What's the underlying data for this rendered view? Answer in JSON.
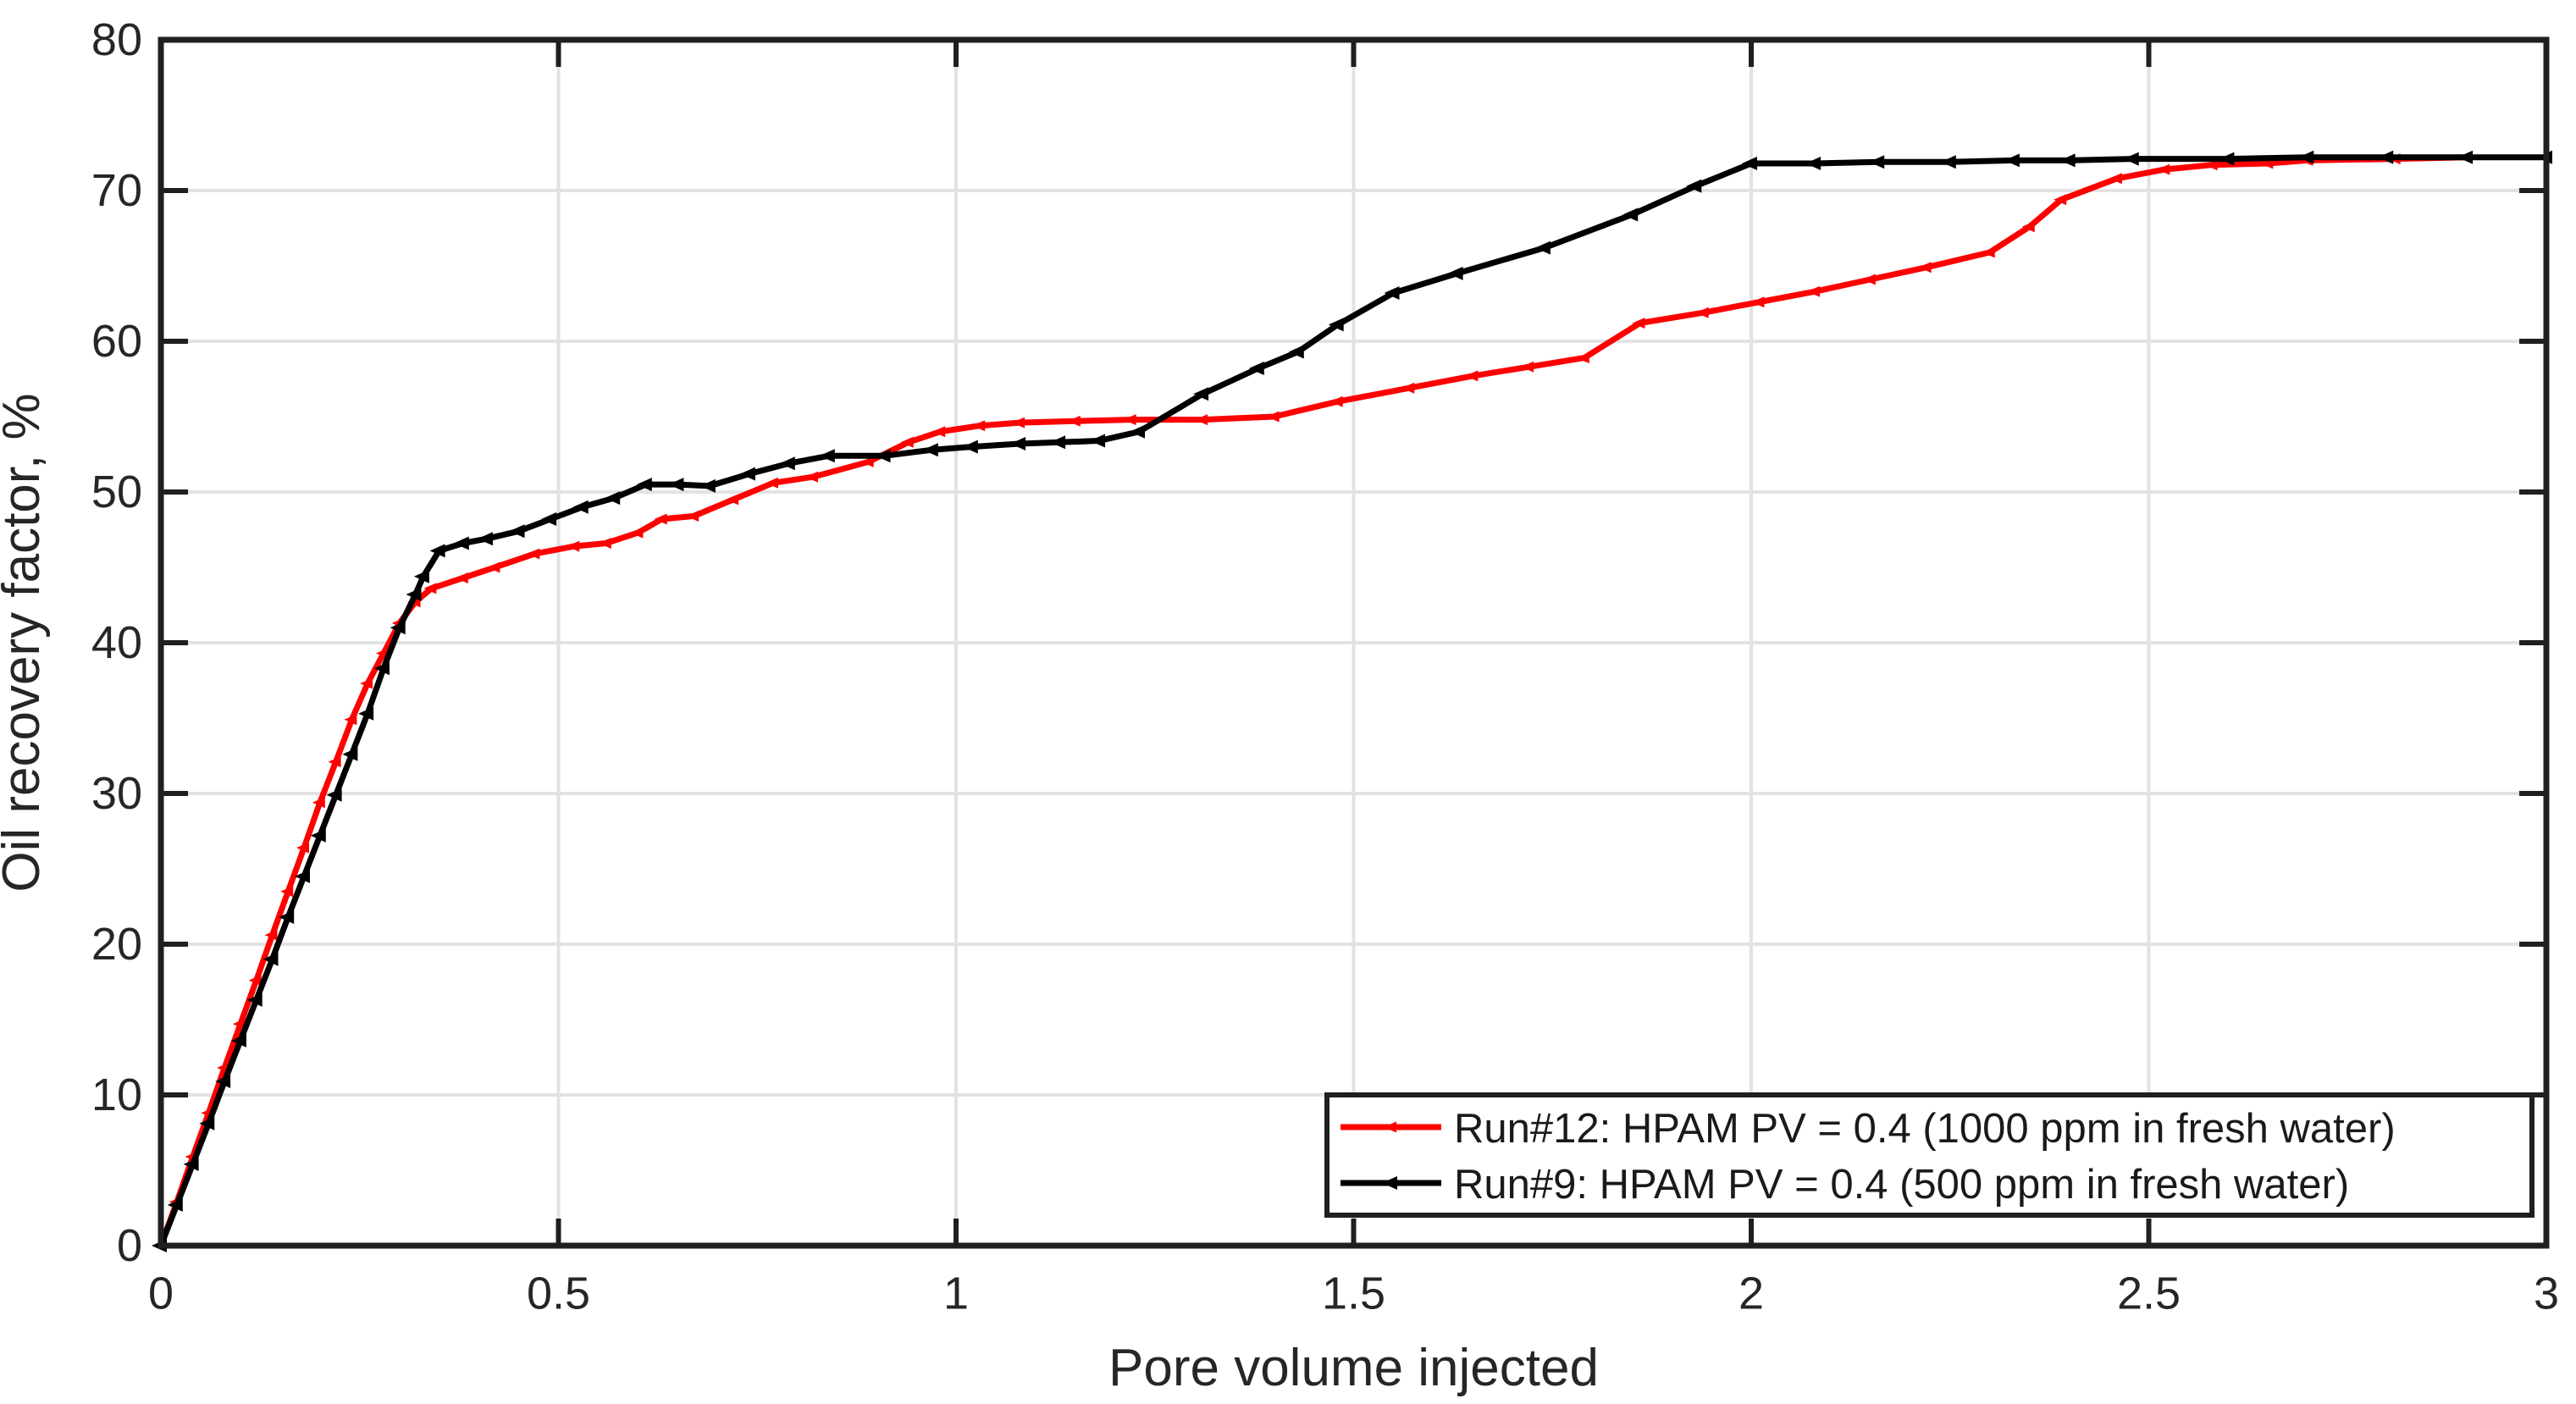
{
  "figure": {
    "background_color": "#ffffff",
    "axis_color": "#1f1f1f",
    "tick_label_color": "#262626",
    "grid_color": "#e2e2e2",
    "legend_border_color": "#1f1f1f",
    "legend_background": "#ffffff"
  },
  "chart_data": {
    "type": "line",
    "title": "",
    "xlabel": "Pore volume injected",
    "ylabel": "Oil recovery factor, %",
    "xlim": [
      0,
      3
    ],
    "ylim": [
      0,
      80
    ],
    "x_ticks": [
      0,
      0.5,
      1,
      1.5,
      2,
      2.5,
      3
    ],
    "x_tick_labels": [
      "0",
      "0.5",
      "1",
      "1.5",
      "2",
      "2.5",
      "3"
    ],
    "y_ticks": [
      0,
      10,
      20,
      30,
      40,
      50,
      60,
      70,
      80
    ],
    "y_tick_labels": [
      "0",
      "10",
      "20",
      "30",
      "40",
      "50",
      "60",
      "70",
      "80"
    ],
    "grid": true,
    "legend_position": "lower right",
    "series": [
      {
        "name": "Run#12: HPAM PV = 0.4 (1000 ppm in fresh water)",
        "color": "#fe0000",
        "marker": "triangle-left",
        "x": [
          0,
          0.02,
          0.04,
          0.06,
          0.08,
          0.1,
          0.12,
          0.14,
          0.16,
          0.18,
          0.2,
          0.22,
          0.24,
          0.26,
          0.28,
          0.3,
          0.32,
          0.34,
          0.38,
          0.42,
          0.47,
          0.52,
          0.56,
          0.6,
          0.63,
          0.67,
          0.72,
          0.77,
          0.82,
          0.89,
          0.94,
          0.98,
          1.03,
          1.08,
          1.15,
          1.22,
          1.31,
          1.4,
          1.48,
          1.57,
          1.65,
          1.72,
          1.79,
          1.86,
          1.94,
          2.01,
          2.08,
          2.15,
          2.22,
          2.3,
          2.35,
          2.39,
          2.46,
          2.52,
          2.58,
          2.65,
          2.7,
          2.81,
          2.9
        ],
        "y": [
          0,
          2.9,
          5.9,
          8.8,
          11.8,
          14.7,
          17.6,
          20.6,
          23.5,
          26.4,
          29.4,
          32.1,
          34.9,
          37.3,
          39.3,
          41.3,
          42.7,
          43.6,
          44.3,
          45.0,
          45.9,
          46.4,
          46.6,
          47.3,
          48.2,
          48.4,
          49.5,
          50.6,
          51.0,
          52.0,
          53.3,
          54.0,
          54.4,
          54.6,
          54.7,
          54.8,
          54.8,
          55.0,
          56.0,
          56.9,
          57.7,
          58.3,
          58.9,
          61.2,
          61.9,
          62.6,
          63.3,
          64.1,
          64.9,
          65.9,
          67.6,
          69.4,
          70.8,
          71.4,
          71.7,
          71.8,
          72.0,
          72.1,
          72.2
        ]
      },
      {
        "name": "Run#9:  HPAM  PV = 0.4 (500 ppm in fresh water)",
        "color": "#000000",
        "marker": "triangle-left",
        "x": [
          0,
          0.02,
          0.04,
          0.06,
          0.08,
          0.1,
          0.12,
          0.14,
          0.16,
          0.18,
          0.2,
          0.22,
          0.24,
          0.26,
          0.28,
          0.3,
          0.32,
          0.33,
          0.35,
          0.38,
          0.41,
          0.45,
          0.49,
          0.53,
          0.57,
          0.61,
          0.65,
          0.69,
          0.74,
          0.79,
          0.84,
          0.91,
          0.97,
          1.02,
          1.08,
          1.13,
          1.18,
          1.23,
          1.31,
          1.38,
          1.43,
          1.48,
          1.55,
          1.63,
          1.74,
          1.85,
          1.93,
          2.0,
          2.08,
          2.16,
          2.25,
          2.33,
          2.4,
          2.48,
          2.6,
          2.7,
          2.8,
          2.9,
          3.0
        ],
        "y": [
          0,
          2.7,
          5.4,
          8.1,
          10.9,
          13.6,
          16.3,
          19.0,
          21.8,
          24.5,
          27.2,
          29.9,
          32.6,
          35.3,
          38.3,
          41.0,
          43.2,
          44.4,
          46.1,
          46.6,
          46.9,
          47.4,
          48.2,
          49.0,
          49.6,
          50.5,
          50.5,
          50.4,
          51.2,
          51.9,
          52.4,
          52.4,
          52.8,
          53.0,
          53.2,
          53.3,
          53.4,
          54.0,
          56.5,
          58.2,
          59.3,
          61.1,
          63.2,
          64.5,
          66.2,
          68.4,
          70.3,
          71.8,
          71.8,
          71.9,
          71.9,
          72.0,
          72.0,
          72.1,
          72.1,
          72.2,
          72.2,
          72.2,
          72.2
        ]
      }
    ]
  }
}
